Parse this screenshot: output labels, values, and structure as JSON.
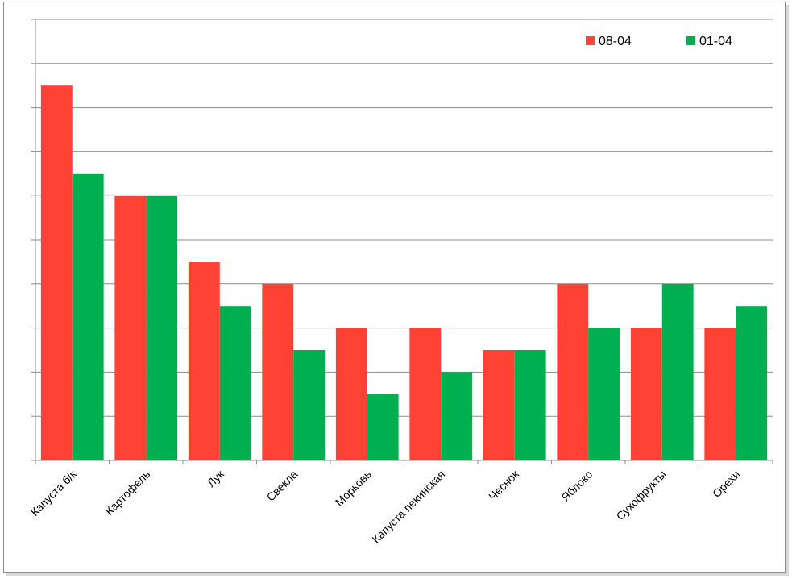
{
  "chart_data": {
    "type": "bar",
    "title": "",
    "xlabel": "",
    "ylabel": "",
    "ylim": [
      0,
      10
    ],
    "grid": true,
    "y_tick_labels_shown": false,
    "legend_position": "top-right",
    "categories": [
      "Капуста б/к",
      "Картофель",
      "Лук",
      "Свекла",
      "Морковь",
      "Капуста пекинская",
      "Чеснок",
      "Яблоко",
      "Сухофрукты",
      "Орехи"
    ],
    "series": [
      {
        "name": "08-04",
        "color": "#ff4233",
        "values": [
          8.5,
          6,
          4.5,
          4,
          3,
          3,
          2.5,
          4,
          3,
          3
        ]
      },
      {
        "name": "01-04",
        "color": "#00b050",
        "values": [
          6.5,
          6,
          3.5,
          2.5,
          1.5,
          2,
          2.5,
          3,
          4,
          3.5
        ]
      }
    ]
  }
}
